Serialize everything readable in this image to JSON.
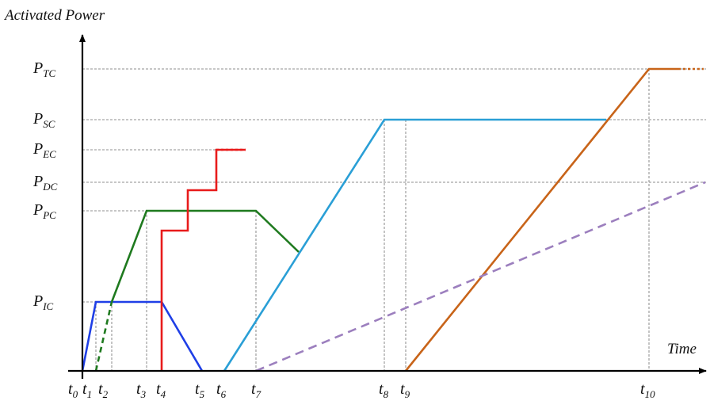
{
  "chart_data": {
    "type": "line",
    "y_axis_title": "Activated Power",
    "x_axis_title": "Time",
    "x_ticks": [
      {
        "id": "t0",
        "main": "t",
        "sub": "0"
      },
      {
        "id": "t1",
        "main": "t",
        "sub": "1"
      },
      {
        "id": "t2",
        "main": "t",
        "sub": "2"
      },
      {
        "id": "t3",
        "main": "t",
        "sub": "3"
      },
      {
        "id": "t4",
        "main": "t",
        "sub": "4"
      },
      {
        "id": "t5",
        "main": "t",
        "sub": "5"
      },
      {
        "id": "t6",
        "main": "t",
        "sub": "6"
      },
      {
        "id": "t7",
        "main": "t",
        "sub": "7"
      },
      {
        "id": "t8",
        "main": "t",
        "sub": "8"
      },
      {
        "id": "t9",
        "main": "t",
        "sub": "9"
      },
      {
        "id": "t10",
        "main": "t",
        "sub": "10"
      }
    ],
    "y_ticks": [
      {
        "id": "PIC",
        "main": "P",
        "sub": "IC"
      },
      {
        "id": "PPC",
        "main": "P",
        "sub": "PC"
      },
      {
        "id": "PDC",
        "main": "P",
        "sub": "DC"
      },
      {
        "id": "PEC",
        "main": "P",
        "sub": "EC"
      },
      {
        "id": "PSC",
        "main": "P",
        "sub": "SC"
      },
      {
        "id": "PTC",
        "main": "P",
        "sub": "TC"
      }
    ],
    "series": [
      {
        "key": "blue",
        "color": "#1f3fe6",
        "style": "solid",
        "points": [
          [
            "t0",
            0
          ],
          [
            "t1",
            "PIC"
          ],
          [
            "t4",
            "PIC"
          ],
          [
            "t5",
            0
          ]
        ]
      },
      {
        "key": "green",
        "color": "#1f7a1f",
        "style": "solid",
        "points": [
          [
            "t2",
            "PIC"
          ],
          [
            "t3",
            "PPC"
          ],
          [
            "t7",
            "PPC"
          ],
          [
            "ramp_meet",
            "green_end"
          ]
        ]
      },
      {
        "key": "green-dashed",
        "color": "#1f7a1f",
        "style": "dashed",
        "points": [
          [
            "t1",
            0
          ],
          [
            "t2",
            "PIC"
          ]
        ]
      },
      {
        "key": "red",
        "color": "#e81b1b",
        "style": "step",
        "points": [
          [
            "t4",
            0
          ],
          [
            "t4",
            "red_1"
          ],
          [
            "red_x1",
            "red_1"
          ],
          [
            "red_x1",
            "red_2"
          ],
          [
            "red_x2",
            "red_2"
          ],
          [
            "red_x2",
            "PEC"
          ],
          [
            "red_end",
            "PEC"
          ]
        ]
      },
      {
        "key": "light-blue",
        "color": "#2a9fd6",
        "style": "solid",
        "points": [
          [
            "t6",
            0
          ],
          [
            "t8",
            "PSC"
          ],
          [
            "light_end",
            "PSC"
          ]
        ]
      },
      {
        "key": "orange",
        "color": "#c86419",
        "style": "solid",
        "points": [
          [
            "t9",
            0
          ],
          [
            "t10",
            "PTC"
          ],
          [
            "orange_end",
            "PTC"
          ]
        ]
      },
      {
        "key": "purple-dashed",
        "color": "#9c7fbe",
        "style": "dashed",
        "points": [
          [
            "t7",
            0
          ],
          [
            "plot_end",
            "PDC"
          ]
        ]
      }
    ]
  }
}
